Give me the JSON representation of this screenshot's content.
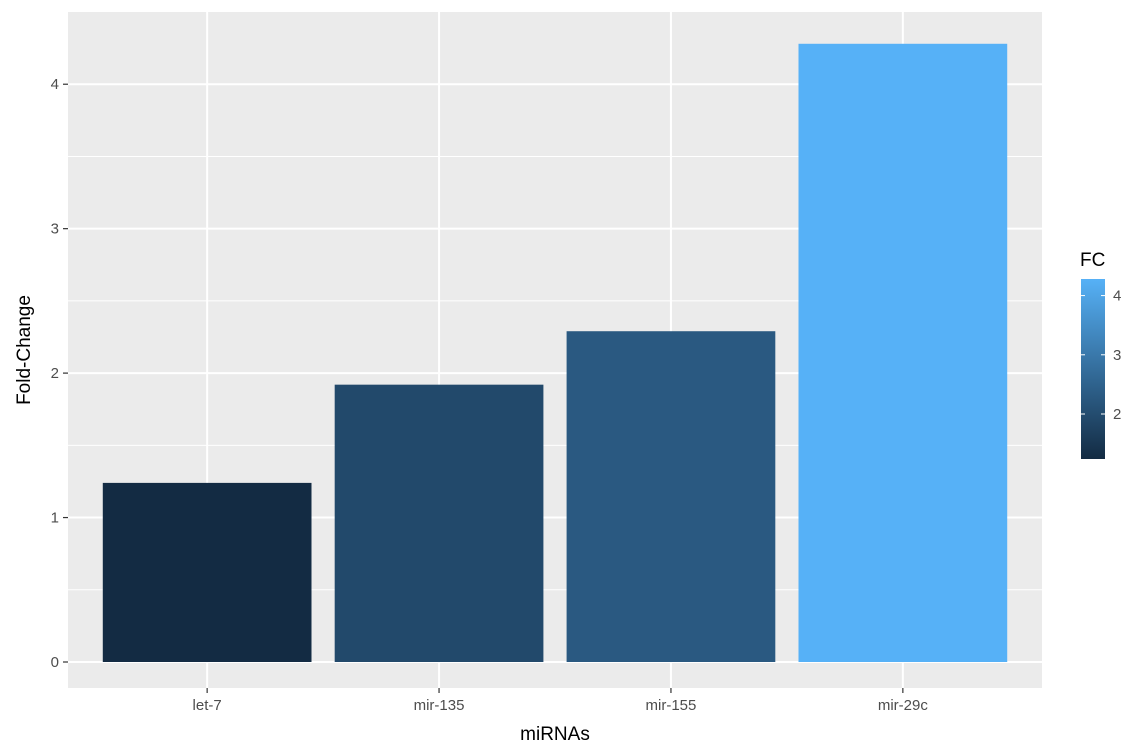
{
  "chart_data": {
    "type": "bar",
    "categories": [
      "let-7",
      "mir-135",
      "mir-155",
      "mir-29c"
    ],
    "values": [
      1.24,
      1.92,
      2.29,
      4.28
    ],
    "xlabel": "miRNAs",
    "ylabel": "Fold-Change",
    "ylim": [
      -0.18,
      4.5
    ],
    "yticks": [
      0,
      1,
      2,
      3,
      4
    ],
    "grid": true,
    "fill_by": "FC",
    "colorscale": {
      "low": "#132B43",
      "high": "#56B1F7",
      "range": [
        1.24,
        4.28
      ]
    },
    "legend": {
      "title": "FC",
      "ticks": [
        2,
        3,
        4
      ],
      "placement": "right"
    },
    "panel_background": "#EBEBEB",
    "gridline_color": "#ffffff"
  }
}
